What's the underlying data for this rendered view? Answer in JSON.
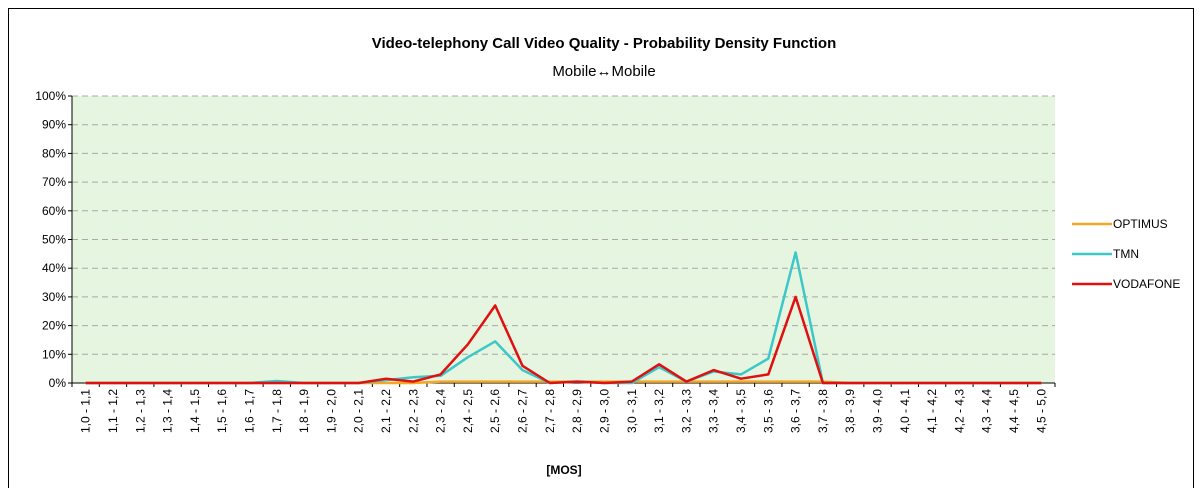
{
  "chart_data": {
    "type": "line",
    "title": "Video-telephony Call Video Quality - Probability Density Function",
    "subtitle": "Mobile↔Mobile",
    "xlabel": "[MOS]",
    "ylabel": "",
    "ylim": [
      0,
      1
    ],
    "yticks": [
      "0%",
      "10%",
      "20%",
      "30%",
      "40%",
      "50%",
      "60%",
      "70%",
      "80%",
      "90%",
      "100%"
    ],
    "grid": true,
    "legend_position": "right",
    "categories": [
      "1,0 - 1,1",
      "1,1 - 1,2",
      "1,2 - 1,3",
      "1,3 - 1,4",
      "1,4 - 1,5",
      "1,5 - 1,6",
      "1,6 - 1,7",
      "1,7 - 1,8",
      "1,8 - 1,9",
      "1,9 - 2,0",
      "2,0 - 2,1",
      "2,1 - 2,2",
      "2,2 - 2,3",
      "2,3 - 2,4",
      "2,4 - 2,5",
      "2,5 - 2,6",
      "2,6 - 2,7",
      "2,7 - 2,8",
      "2,8 - 2,9",
      "2,9 - 3,0",
      "3,0 - 3,1",
      "3,1 - 3,2",
      "3,2 - 3,3",
      "3,3 - 3,4",
      "3,4 - 3,5",
      "3,5 - 3,6",
      "3,6 - 3,7",
      "3,7 - 3,8",
      "3,8 - 3,9",
      "3,9 - 4,0",
      "4,0 - 4,1",
      "4,1 - 4,2",
      "4,2 - 4,3",
      "4,3 - 4,4",
      "4,4 - 4,5",
      "4,5 - 5,0"
    ],
    "series": [
      {
        "name": "OPTIMUS",
        "color": "#f5a623",
        "values": [
          0,
          0,
          0,
          0,
          0,
          0,
          0,
          0,
          0,
          0,
          0,
          0,
          0,
          0.005,
          0.005,
          0.005,
          0.005,
          0.005,
          0.005,
          0.005,
          0.005,
          0.005,
          0.005,
          0.005,
          0.005,
          0.005,
          0.005,
          0.005,
          0,
          0,
          0,
          0,
          0,
          0,
          0,
          0
        ]
      },
      {
        "name": "TMN",
        "color": "#3cc8c8",
        "values": [
          0,
          0,
          0,
          0,
          0,
          0,
          0,
          0.007,
          0,
          0,
          0,
          0.01,
          0.02,
          0.025,
          0.09,
          0.145,
          0.045,
          0,
          0.005,
          0,
          0,
          0.055,
          0.005,
          0.04,
          0.03,
          0.085,
          0.455,
          0,
          0,
          0,
          0,
          0,
          0,
          0,
          0,
          0
        ]
      },
      {
        "name": "VODAFONE",
        "color": "#e01010",
        "values": [
          0,
          0,
          0,
          0,
          0,
          0,
          0,
          0,
          0,
          0,
          0,
          0.015,
          0.005,
          0.03,
          0.135,
          0.27,
          0.06,
          0,
          0.005,
          0,
          0.005,
          0.065,
          0.005,
          0.045,
          0.015,
          0.03,
          0.3,
          0,
          0,
          0,
          0,
          0,
          0,
          0,
          0,
          0
        ]
      }
    ]
  }
}
